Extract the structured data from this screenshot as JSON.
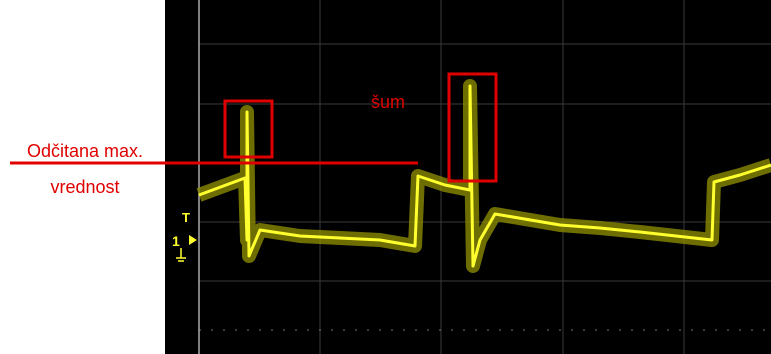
{
  "annotation": {
    "line1": "Odčitana max.",
    "line2": "vrednost"
  },
  "noise_label": "šum",
  "trigger_marker": "T",
  "channel_marker": "1"
}
